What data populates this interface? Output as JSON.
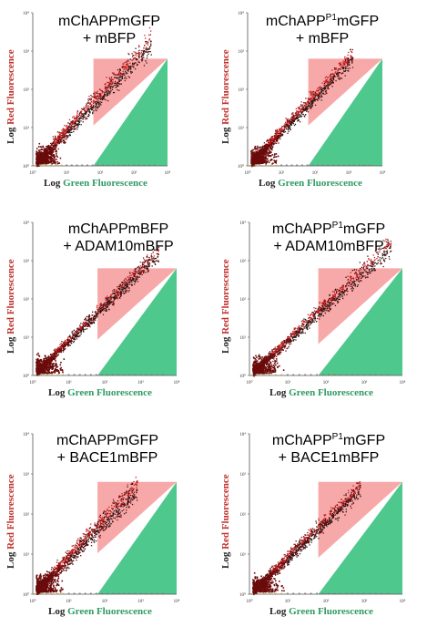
{
  "axis_text": {
    "y_prefix": "Log ",
    "y_colored": "Red Fluorescence",
    "x_prefix": "Log ",
    "x_colored": "Green Fluorescence",
    "tick_labels": [
      "10⁰",
      "10¹",
      "10²",
      "10³",
      "10⁴"
    ]
  },
  "colors": {
    "red_gate": "#f7a9a9",
    "green_gate": "#4fc88e",
    "dots_dark": "#6b0a0a",
    "dots_red": "#c8191b",
    "dots_black": "#1a1a1a",
    "yellow_baseline": "#e9d64a"
  },
  "panels": [
    {
      "line1": "mChAPPmGFP",
      "line1_base": "",
      "line1_sup": "",
      "line1_rest": "",
      "line2": "+ mBFP"
    },
    {
      "line1": "",
      "line1_base": "mChAPP",
      "line1_sup": "P1",
      "line1_rest": "mGFP",
      "line2": "+ mBFP"
    },
    {
      "line1": "mChAPPmBFP",
      "line1_base": "",
      "line1_sup": "",
      "line1_rest": "",
      "line2": "+ ADAM10mBFP"
    },
    {
      "line1": "",
      "line1_base": "mChAPP",
      "line1_sup": "P1",
      "line1_rest": "mGFP",
      "line2": "+ ADAM10mBFP"
    },
    {
      "line1": "mChAPPmGFP",
      "line1_base": "",
      "line1_sup": "",
      "line1_rest": "",
      "line2": "+ BACE1mBFP"
    },
    {
      "line1": "",
      "line1_base": "mChAPP",
      "line1_sup": "P1",
      "line1_rest": "mGFP",
      "line2": "+ BACE1mBFP"
    }
  ],
  "chart_data": [
    {
      "type": "scatter",
      "xlabel": "Log Green Fluorescence",
      "ylabel": "Log Red Fluorescence",
      "x_scale": "log",
      "y_scale": "log",
      "xlim": [
        1,
        10000
      ],
      "ylim": [
        1,
        10000
      ],
      "cloud_extent": 0.85,
      "cloud_spread": 0.18,
      "red_fraction": 0.65
    },
    {
      "type": "scatter",
      "xlabel": "Log Green Fluorescence",
      "ylabel": "Log Red Fluorescence",
      "x_scale": "log",
      "y_scale": "log",
      "xlim": [
        1,
        10000
      ],
      "ylim": [
        1,
        10000
      ],
      "cloud_extent": 0.75,
      "cloud_spread": 0.15,
      "red_fraction": 0.7
    },
    {
      "type": "scatter",
      "xlabel": "Log Green Fluorescence",
      "ylabel": "Log Red Fluorescence",
      "x_scale": "log",
      "y_scale": "log",
      "xlim": [
        1,
        10000
      ],
      "ylim": [
        1,
        10000
      ],
      "cloud_extent": 0.85,
      "cloud_spread": 0.12,
      "red_fraction": 0.45
    },
    {
      "type": "scatter",
      "xlabel": "Log Green Fluorescence",
      "ylabel": "Log Red Fluorescence",
      "x_scale": "log",
      "y_scale": "log",
      "xlim": [
        1,
        10000
      ],
      "ylim": [
        1,
        10000
      ],
      "cloud_extent": 0.9,
      "cloud_spread": 0.14,
      "red_fraction": 0.6
    },
    {
      "type": "scatter",
      "xlabel": "Log Green Fluorescence",
      "ylabel": "Log Red Fluorescence",
      "x_scale": "log",
      "y_scale": "log",
      "xlim": [
        1,
        10000
      ],
      "ylim": [
        1,
        10000
      ],
      "cloud_extent": 0.7,
      "cloud_spread": 0.18,
      "red_fraction": 0.6
    },
    {
      "type": "scatter",
      "xlabel": "Log Green Fluorescence",
      "ylabel": "Log Red Fluorescence",
      "x_scale": "log",
      "y_scale": "log",
      "xlim": [
        1,
        10000
      ],
      "ylim": [
        1,
        10000
      ],
      "cloud_extent": 0.7,
      "cloud_spread": 0.14,
      "red_fraction": 0.6
    }
  ]
}
